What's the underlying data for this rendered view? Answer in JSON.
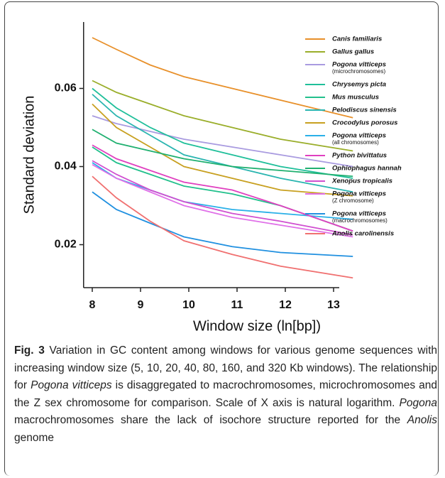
{
  "chart_data": {
    "type": "line",
    "xlabel": "Window size (ln[bp])",
    "ylabel": "Standard deviation",
    "x": [
      8,
      8.5,
      9.2,
      9.9,
      10.9,
      11.9,
      13.4
    ],
    "xlim": [
      7.82,
      13.4
    ],
    "xticks": [
      8,
      9,
      10,
      11,
      12,
      13
    ],
    "ylim": [
      0.009,
      0.077
    ],
    "yticks": [
      0.02,
      0.04,
      0.06
    ],
    "series": [
      {
        "name": "Canis familiaris",
        "color": "#e8902a",
        "values": [
          0.073,
          0.07,
          0.066,
          0.063,
          0.06,
          0.057,
          0.0525
        ]
      },
      {
        "name": "Gallus gallus",
        "color": "#9aae2a",
        "values": [
          0.062,
          0.059,
          0.056,
          0.053,
          0.05,
          0.047,
          0.044
        ]
      },
      {
        "name": "Pogona vitticeps",
        "name_note": "(microchromosomes)",
        "color": "#a99be0",
        "values": [
          0.053,
          0.051,
          0.049,
          0.047,
          0.045,
          0.043,
          0.04
        ]
      },
      {
        "name": "Chrysemys picta",
        "color": "#1fbf9a",
        "values": [
          0.06,
          0.055,
          0.05,
          0.046,
          0.043,
          0.04,
          0.037
        ]
      },
      {
        "name": "Mus musculus",
        "color": "#22c08c",
        "values": [
          0.045,
          0.041,
          0.038,
          0.035,
          0.033,
          0.03,
          0.0235
        ]
      },
      {
        "name": "Pelodiscus sinensis",
        "color": "#2ab5b0",
        "values": [
          0.0585,
          0.053,
          0.048,
          0.043,
          0.04,
          0.037,
          0.0335
        ]
      },
      {
        "name": "Crocodylus porosus",
        "color": "#c8a020",
        "values": [
          0.056,
          0.05,
          0.045,
          0.04,
          0.037,
          0.034,
          0.0325
        ]
      },
      {
        "name": "Pogona vitticeps",
        "name_note": "(all chromosomes)",
        "color": "#2ab0e8",
        "values": [
          0.041,
          0.037,
          0.034,
          0.031,
          0.029,
          0.028,
          0.0265
        ]
      },
      {
        "name": "Python bivittatus",
        "color": "#e040c0",
        "values": [
          0.0455,
          0.042,
          0.039,
          0.036,
          0.034,
          0.03,
          0.0235
        ]
      },
      {
        "name": "Ophiophagus hannah",
        "color": "#20b070",
        "values": [
          0.0495,
          0.046,
          0.044,
          0.042,
          0.04,
          0.039,
          0.0375
        ]
      },
      {
        "name": "Xenopus tropicalis",
        "color": "#d050d0",
        "values": [
          0.0415,
          0.038,
          0.034,
          0.031,
          0.028,
          0.026,
          0.0225
        ]
      },
      {
        "name": "Pogona vitticeps",
        "name_note": "(Z chromosome)",
        "color": "#e070e8",
        "values": [
          0.0405,
          0.037,
          0.0335,
          0.03,
          0.027,
          0.025,
          0.022
        ]
      },
      {
        "name": "Pogona vitticeps",
        "name_note": "(macrochromosomes)",
        "color": "#2090e0",
        "values": [
          0.0335,
          0.029,
          0.0255,
          0.022,
          0.0195,
          0.018,
          0.017
        ]
      },
      {
        "name": "Anolis carolinensis",
        "color": "#f07070",
        "values": [
          0.0375,
          0.032,
          0.026,
          0.021,
          0.0175,
          0.0145,
          0.0115
        ]
      }
    ]
  },
  "caption": {
    "label": "Fig. 3",
    "parts": [
      " Variation in GC content among windows for various genome sequences with increasing window size (5, 10, 20, 40, 80, 160, and 320 Kb windows). The relationship for ",
      "Pogona vitticeps",
      " is disaggregated to macrochromosomes, microchromosomes and the Z sex chromosome for comparison. Scale of X axis is natural logarithm. ",
      "Pogona",
      " macrochromosomes share the lack of isochore structure reported for the ",
      "Anolis",
      " genome"
    ]
  }
}
